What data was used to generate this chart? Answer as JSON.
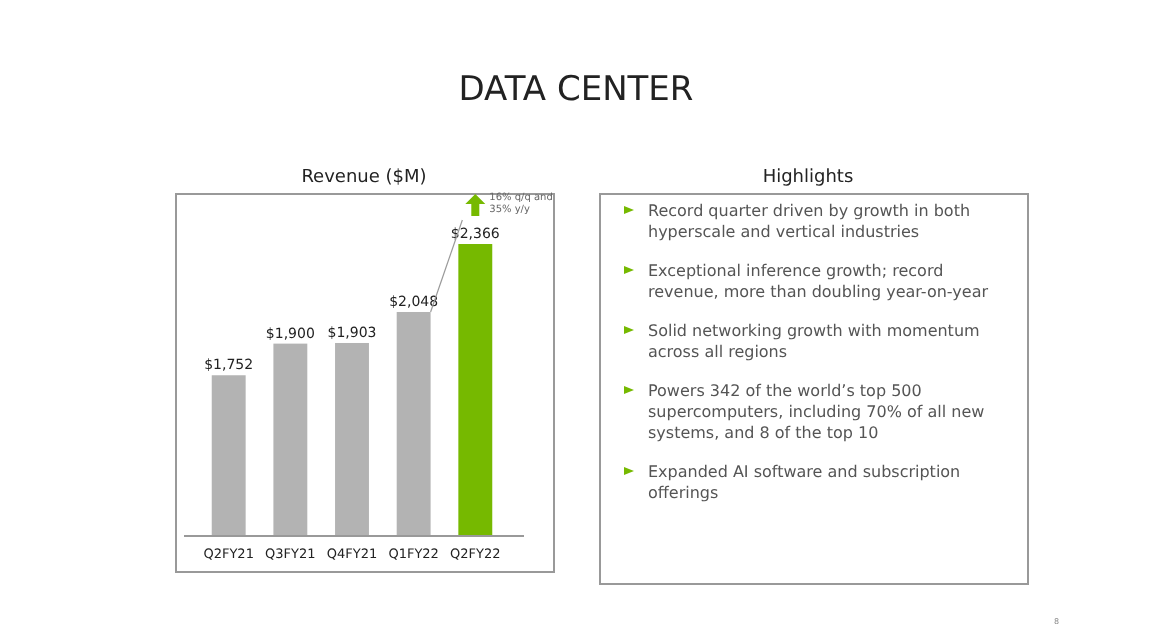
{
  "chart_data": [
    {
      "type": "bar",
      "title": "DATA CENTER",
      "subtitle": "Revenue ($M)",
      "categories": [
        "Q2FY21",
        "Q3FY21",
        "Q4FY21",
        "Q1FY22",
        "Q2FY22"
      ],
      "values": [
        1752,
        1900,
        1903,
        2048,
        2366
      ],
      "colors": [
        "#b3b3b3",
        "#b3b3b3",
        "#b3b3b3",
        "#b3b3b3",
        "#76b900"
      ],
      "ylim": [
        1000,
        2600
      ],
      "tick_labels": "x",
      "value_labels": [
        "$1,752",
        "$1,900",
        "$1,903",
        "$2,048",
        "$2,366"
      ],
      "annotations": [
        "16% q/q and 35% y/y"
      ]
    },
    {
      "type": "other",
      "title": "Highlights",
      "annotations": [
        "Record quarter driven by growth in both hyperscale and vertical industries",
        "Exceptional inference growth; record revenue, more than doubling year-on-year",
        "Solid networking growth with momentum across all regions",
        "Powers 342 of the world’s top 500 supercomputers, including 70% of all new systems, and 8 of the top 10",
        "Expanded AI software and subscription offerings",
        "8"
      ]
    }
  ]
}
